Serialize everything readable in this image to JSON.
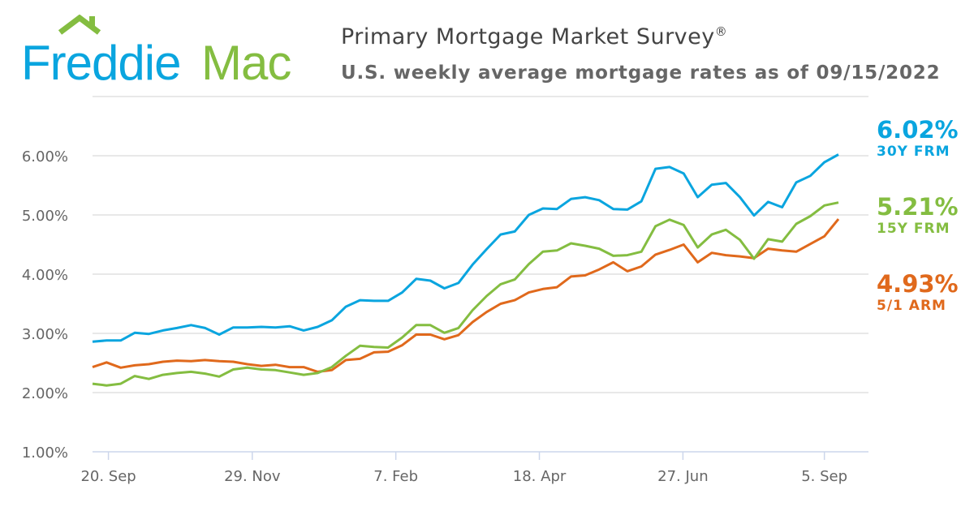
{
  "header": {
    "logo_text": "Freddie Mac",
    "title": "Primary Mortgage Market Survey",
    "title_mark": "®",
    "subtitle": "U.S. weekly average mortgage rates as of 09/15/2022"
  },
  "chart_data": {
    "type": "line",
    "title": "Primary Mortgage Market Survey®",
    "subtitle": "U.S. weekly average mortgage rates as of 09/15/2022",
    "ylim": [
      1,
      7
    ],
    "y_ticks": [
      "1.00%",
      "2.00%",
      "3.00%",
      "4.00%",
      "5.00%",
      "6.00%"
    ],
    "x_ticks": [
      "20. Sep",
      "29. Nov",
      "7. Feb",
      "18. Apr",
      "27. Jun",
      "5. Sep"
    ],
    "grid": true,
    "legend": "right (end labels)",
    "series": [
      {
        "name": "30Y FRM",
        "last_label": "6.02%",
        "color": "#0aa5df",
        "values": [
          2.86,
          2.88,
          2.88,
          3.01,
          2.99,
          3.05,
          3.09,
          3.14,
          3.09,
          2.98,
          3.1,
          3.1,
          3.11,
          3.1,
          3.12,
          3.05,
          3.11,
          3.22,
          3.45,
          3.56,
          3.55,
          3.55,
          3.69,
          3.92,
          3.89,
          3.76,
          3.85,
          4.16,
          4.42,
          4.67,
          4.72,
          5.0,
          5.11,
          5.1,
          5.27,
          5.3,
          5.25,
          5.1,
          5.09,
          5.23,
          5.78,
          5.81,
          5.7,
          5.3,
          5.51,
          5.54,
          5.3,
          4.99,
          5.22,
          5.13,
          5.55,
          5.66,
          5.89,
          6.02
        ]
      },
      {
        "name": "15Y FRM",
        "last_label": "5.21%",
        "color": "#84bd41",
        "values": [
          2.15,
          2.12,
          2.15,
          2.28,
          2.23,
          2.3,
          2.33,
          2.35,
          2.32,
          2.27,
          2.39,
          2.42,
          2.39,
          2.38,
          2.34,
          2.3,
          2.33,
          2.43,
          2.62,
          2.79,
          2.77,
          2.76,
          2.93,
          3.14,
          3.14,
          3.01,
          3.09,
          3.39,
          3.63,
          3.83,
          3.91,
          4.17,
          4.38,
          4.4,
          4.52,
          4.48,
          4.43,
          4.31,
          4.32,
          4.38,
          4.81,
          4.92,
          4.83,
          4.45,
          4.67,
          4.75,
          4.58,
          4.26,
          4.59,
          4.55,
          4.85,
          4.98,
          5.16,
          5.21
        ]
      },
      {
        "name": "5/1 ARM",
        "last_label": "4.93%",
        "color": "#e0691c",
        "values": [
          2.43,
          2.51,
          2.42,
          2.46,
          2.48,
          2.52,
          2.54,
          2.53,
          2.55,
          2.53,
          2.52,
          2.48,
          2.45,
          2.47,
          2.43,
          2.43,
          2.35,
          2.38,
          2.55,
          2.57,
          2.68,
          2.69,
          2.8,
          2.98,
          2.98,
          2.9,
          2.97,
          3.19,
          3.36,
          3.5,
          3.56,
          3.69,
          3.75,
          3.78,
          3.96,
          3.98,
          4.08,
          4.2,
          4.05,
          4.13,
          4.33,
          4.41,
          4.5,
          4.2,
          4.36,
          4.32,
          4.3,
          4.27,
          4.43,
          4.4,
          4.38,
          4.51,
          4.64,
          4.93
        ]
      }
    ]
  }
}
